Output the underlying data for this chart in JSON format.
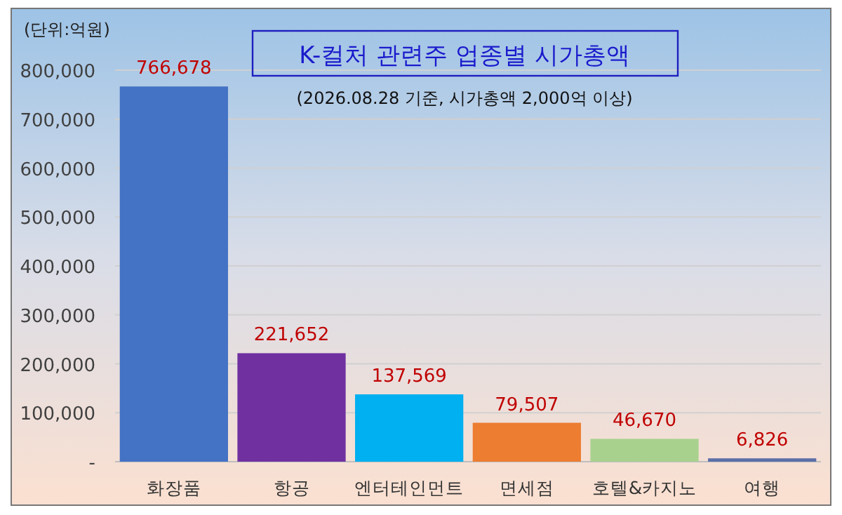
{
  "chart_data": {
    "type": "bar",
    "title": "K-컬처 관련주 업종별 시가총액",
    "subtitle": "(2026.08.28 기준, 시가총액 2,000억 이상)",
    "ylabel": "(단위:억원)",
    "categories": [
      "화장품",
      "항공",
      "엔터테인먼트",
      "면세점",
      "호텔&카지노",
      "여행"
    ],
    "values": [
      766678,
      221652,
      137569,
      79507,
      46670,
      6826
    ],
    "value_labels": [
      "766,678",
      "221,652",
      "137,569",
      "79,507",
      "46,670",
      "6,826"
    ],
    "colors": [
      "#4472c4",
      "#7030a0",
      "#00b0f0",
      "#ed7d31",
      "#a9d18e",
      "#5b6fa8"
    ],
    "ylim": [
      0,
      800000
    ],
    "yticks": [
      {
        "value": 0,
        "label": "-"
      },
      {
        "value": 100000,
        "label": "100,000"
      },
      {
        "value": 200000,
        "label": "200,000"
      },
      {
        "value": 300000,
        "label": "300,000"
      },
      {
        "value": 400000,
        "label": "400,000"
      },
      {
        "value": 500000,
        "label": "500,000"
      },
      {
        "value": 600000,
        "label": "600,000"
      },
      {
        "value": 700000,
        "label": "700,000"
      },
      {
        "value": 800000,
        "label": "800,000"
      }
    ],
    "grid": "y"
  }
}
